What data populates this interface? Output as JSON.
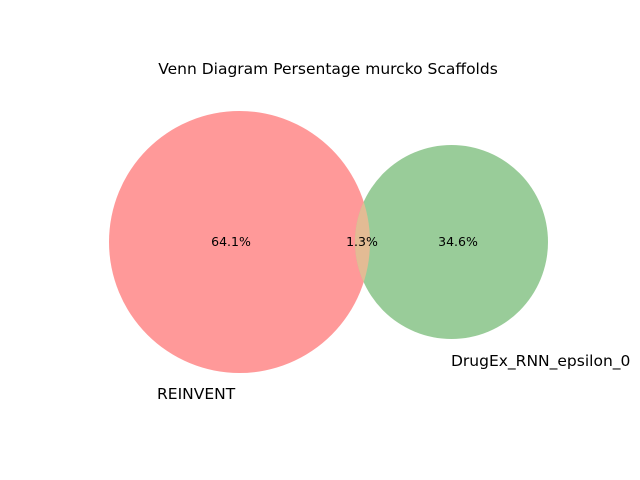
{
  "diagram": {
    "title": "Venn Diagram Persentage murcko Scaffolds",
    "sets": [
      {
        "id": "A",
        "label": "REINVENT",
        "color": "#ff9999"
      },
      {
        "id": "B",
        "label": "DrugEx_RNN_epsilon_0",
        "color": "#99cc99"
      }
    ],
    "overlap_color": "#e3bb94",
    "regions": {
      "only_a": "64.1%",
      "both": "1.3%",
      "only_b": "34.6%"
    }
  }
}
